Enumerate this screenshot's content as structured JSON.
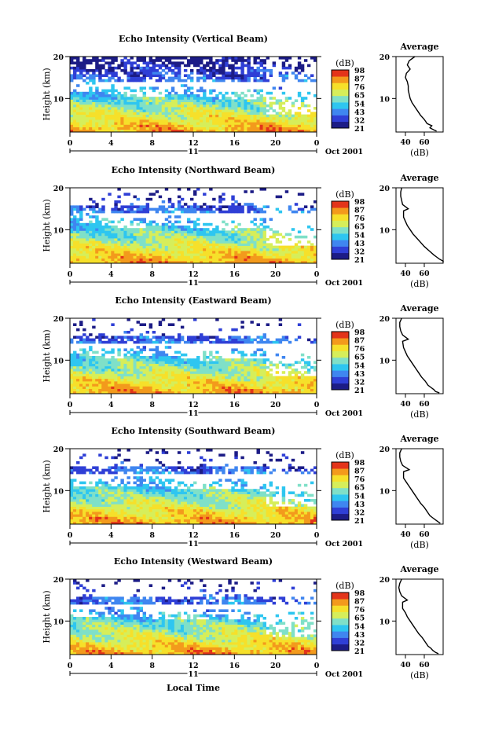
{
  "colorbar": {
    "unit": "(dB)",
    "labels": [
      "98",
      "87",
      "76",
      "65",
      "54",
      "43",
      "32",
      "21"
    ],
    "colors": [
      "#1c1c86",
      "#2f3fd6",
      "#3f86f0",
      "#2ec6f0",
      "#7fe0c8",
      "#d6ee5a",
      "#f6e02a",
      "#f39a1c",
      "#e3341a"
    ]
  },
  "xaxis": {
    "ticks": [
      "0",
      "4",
      "8",
      "12",
      "16",
      "20",
      "0"
    ],
    "day": "11",
    "month_label": "Oct 2001",
    "label": "Local Time"
  },
  "yaxis": {
    "label": "Height (km)",
    "ticks": [
      "20",
      "10"
    ]
  },
  "average": {
    "title": "Average",
    "xlabel": "(dB)"
  },
  "panels": [
    {
      "title": "Echo Intensity (Vertical Beam)",
      "avg_ticks": [
        "40",
        "60"
      ]
    },
    {
      "title": "Echo Intensity (Northward Beam)",
      "avg_ticks": [
        "40",
        "60"
      ]
    },
    {
      "title": "Echo Intensity (Eastward Beam)",
      "avg_ticks": [
        "40",
        "60"
      ]
    },
    {
      "title": "Echo Intensity (Southward Beam)",
      "avg_ticks": [
        "40",
        "60"
      ]
    },
    {
      "title": "Echo Intensity (Westward Beam)",
      "avg_ticks": [
        "40",
        "60"
      ]
    }
  ],
  "chart_data": {
    "type": "heatmap",
    "x": {
      "label": "Local Time",
      "ticks": [
        0,
        4,
        8,
        12,
        16,
        20,
        24
      ],
      "range": [
        0,
        24
      ]
    },
    "y": {
      "label": "Height (km)",
      "ticks": [
        20,
        10
      ],
      "range": [
        2,
        20
      ]
    },
    "color_scale": {
      "label": "(dB)",
      "ticks": [
        98,
        87,
        76,
        65,
        54,
        43,
        32,
        21
      ]
    },
    "average_profiles": [
      {
        "beam": "Vertical",
        "points": [
          [
            50,
            20
          ],
          [
            44,
            19
          ],
          [
            42,
            18
          ],
          [
            45,
            17
          ],
          [
            41,
            16
          ],
          [
            40,
            15
          ],
          [
            42,
            14
          ],
          [
            43,
            13
          ],
          [
            43,
            12
          ],
          [
            44,
            11
          ],
          [
            45,
            10
          ],
          [
            47,
            9
          ],
          [
            50,
            8
          ],
          [
            53,
            7
          ],
          [
            56,
            6
          ],
          [
            60,
            5
          ],
          [
            63,
            4
          ],
          [
            68,
            3.5
          ],
          [
            66,
            3
          ],
          [
            70,
            2.5
          ],
          [
            73,
            2.2
          ]
        ]
      },
      {
        "beam": "Northward",
        "points": [
          [
            36,
            20
          ],
          [
            35,
            19
          ],
          [
            35,
            18
          ],
          [
            36,
            17
          ],
          [
            37,
            16
          ],
          [
            43,
            15
          ],
          [
            38,
            14.5
          ],
          [
            38,
            13
          ],
          [
            40,
            12
          ],
          [
            42,
            11
          ],
          [
            45,
            10
          ],
          [
            48,
            9
          ],
          [
            52,
            8
          ],
          [
            56,
            7
          ],
          [
            60,
            6
          ],
          [
            65,
            5
          ],
          [
            70,
            4
          ],
          [
            73,
            3.5
          ],
          [
            76,
            3
          ],
          [
            80,
            2.5
          ],
          [
            82,
            2.2
          ]
        ]
      },
      {
        "beam": "Eastward",
        "points": [
          [
            36,
            20
          ],
          [
            34,
            19
          ],
          [
            34,
            18
          ],
          [
            35,
            17
          ],
          [
            37,
            16
          ],
          [
            43,
            15
          ],
          [
            37,
            14.5
          ],
          [
            38,
            13
          ],
          [
            40,
            12
          ],
          [
            42,
            11
          ],
          [
            45,
            10
          ],
          [
            48,
            9
          ],
          [
            51,
            8
          ],
          [
            54,
            7
          ],
          [
            57,
            6
          ],
          [
            61,
            5
          ],
          [
            64,
            4
          ],
          [
            67,
            3.5
          ],
          [
            70,
            3
          ],
          [
            72,
            2.5
          ],
          [
            76,
            2.2
          ]
        ]
      },
      {
        "beam": "Southward",
        "points": [
          [
            36,
            20
          ],
          [
            34,
            19
          ],
          [
            34,
            18
          ],
          [
            35,
            17
          ],
          [
            37,
            16
          ],
          [
            44,
            15
          ],
          [
            38,
            14.5
          ],
          [
            38,
            13
          ],
          [
            41,
            12
          ],
          [
            44,
            11
          ],
          [
            47,
            10
          ],
          [
            50,
            9
          ],
          [
            53,
            8
          ],
          [
            56,
            7
          ],
          [
            60,
            6
          ],
          [
            63,
            5
          ],
          [
            66,
            4
          ],
          [
            69,
            3.5
          ],
          [
            72,
            3
          ],
          [
            75,
            2.5
          ],
          [
            77,
            2.2
          ]
        ]
      },
      {
        "beam": "Westward",
        "points": [
          [
            36,
            20
          ],
          [
            34,
            19
          ],
          [
            33,
            18
          ],
          [
            34,
            17
          ],
          [
            36,
            16
          ],
          [
            42,
            15
          ],
          [
            37,
            14.5
          ],
          [
            37,
            13
          ],
          [
            40,
            12
          ],
          [
            42,
            11
          ],
          [
            45,
            10
          ],
          [
            48,
            9
          ],
          [
            51,
            8
          ],
          [
            54,
            7
          ],
          [
            58,
            6
          ],
          [
            61,
            5
          ],
          [
            64,
            4
          ],
          [
            67,
            3.5
          ],
          [
            69,
            3
          ],
          [
            72,
            2.5
          ],
          [
            75,
            2.2
          ]
        ]
      }
    ]
  }
}
